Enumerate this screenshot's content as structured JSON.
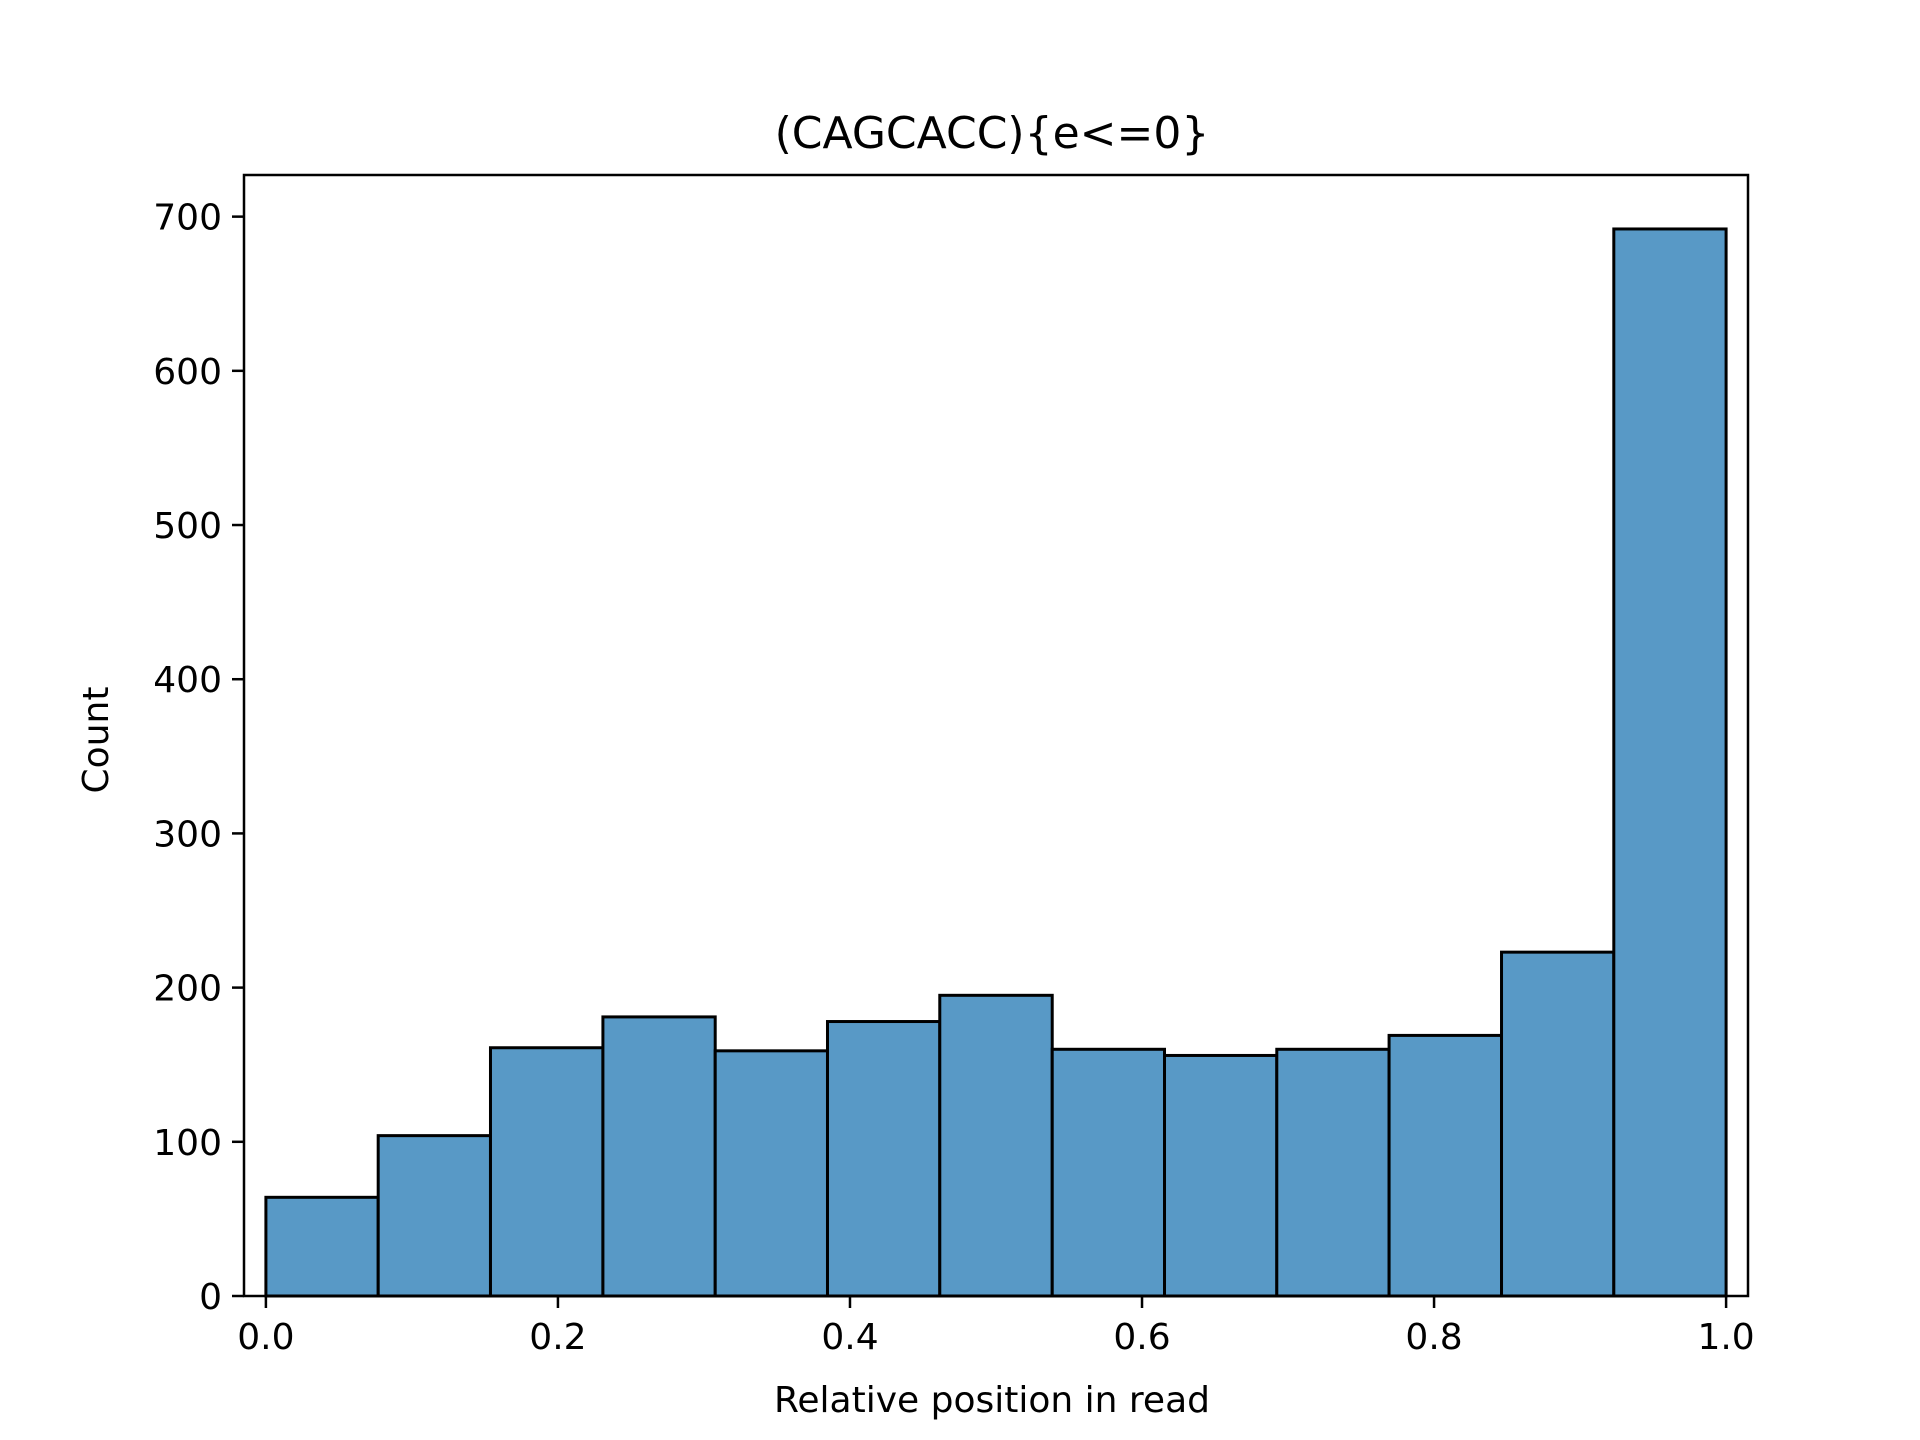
{
  "chart_data": {
    "type": "histogram",
    "title": "(CAGCACC){e<=0}",
    "xlabel": "Relative position in read",
    "ylabel": "Count",
    "xlim": [
      -0.015,
      1.015
    ],
    "ylim": [
      0,
      727
    ],
    "xticks": [
      {
        "value": 0.0,
        "label": "0.0"
      },
      {
        "value": 0.2,
        "label": "0.2"
      },
      {
        "value": 0.4,
        "label": "0.4"
      },
      {
        "value": 0.6,
        "label": "0.6"
      },
      {
        "value": 0.8,
        "label": "0.8"
      },
      {
        "value": 1.0,
        "label": "1.0"
      }
    ],
    "yticks": [
      {
        "value": 0,
        "label": "0"
      },
      {
        "value": 100,
        "label": "100"
      },
      {
        "value": 200,
        "label": "200"
      },
      {
        "value": 300,
        "label": "300"
      },
      {
        "value": 400,
        "label": "400"
      },
      {
        "value": 500,
        "label": "500"
      },
      {
        "value": 600,
        "label": "600"
      },
      {
        "value": 700,
        "label": "700"
      }
    ],
    "bins": [
      {
        "x0": 0.0,
        "x1": 0.0769,
        "count": 64
      },
      {
        "x0": 0.0769,
        "x1": 0.1538,
        "count": 104
      },
      {
        "x0": 0.1538,
        "x1": 0.2308,
        "count": 161
      },
      {
        "x0": 0.2308,
        "x1": 0.3077,
        "count": 181
      },
      {
        "x0": 0.3077,
        "x1": 0.3846,
        "count": 159
      },
      {
        "x0": 0.3846,
        "x1": 0.4615,
        "count": 178
      },
      {
        "x0": 0.4615,
        "x1": 0.5385,
        "count": 195
      },
      {
        "x0": 0.5385,
        "x1": 0.6154,
        "count": 160
      },
      {
        "x0": 0.6154,
        "x1": 0.6923,
        "count": 156
      },
      {
        "x0": 0.6923,
        "x1": 0.7692,
        "count": 160
      },
      {
        "x0": 0.7692,
        "x1": 0.8462,
        "count": 169
      },
      {
        "x0": 0.8462,
        "x1": 0.9231,
        "count": 223
      },
      {
        "x0": 0.9231,
        "x1": 1.0,
        "count": 692
      }
    ],
    "bar_color": "#5899c6",
    "edge_color": "#000000",
    "grid": false,
    "legend": false
  }
}
